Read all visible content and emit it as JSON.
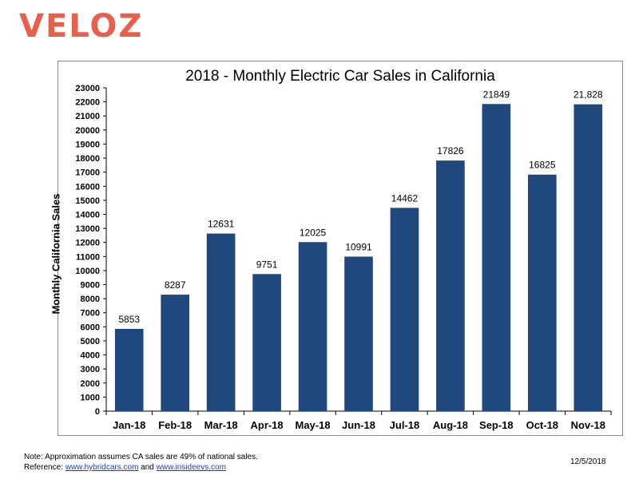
{
  "logo": {
    "text": "VELOZ",
    "color": "#e8604c"
  },
  "chart_data": {
    "type": "bar",
    "title": "2018 - Monthly Electric Car Sales in California",
    "xlabel": "",
    "ylabel": "Monthly California Sales",
    "categories": [
      "Jan-18",
      "Feb-18",
      "Mar-18",
      "Apr-18",
      "May-18",
      "Jun-18",
      "Jul-18",
      "Aug-18",
      "Sep-18",
      "Oct-18",
      "Nov-18"
    ],
    "values": [
      5853,
      8287,
      12631,
      9751,
      12025,
      10991,
      14462,
      17826,
      21849,
      16825,
      21828
    ],
    "value_labels": [
      "5853",
      "8287",
      "12631",
      "9751",
      "12025",
      "10991",
      "14462",
      "17826",
      "21849",
      "16825",
      "21,828"
    ],
    "ylim": [
      0,
      23000
    ],
    "ytick_step": 1000,
    "grid": false,
    "bar_color": "#1f497d"
  },
  "footer": {
    "note": "Note:  Approximation assumes CA sales are 49% of national sales.",
    "reference_prefix": "Reference: ",
    "link1": "www.hybridcars.com",
    "and_text": " and ",
    "link2": "www.insideevs.com",
    "date": "12/5/2018"
  }
}
